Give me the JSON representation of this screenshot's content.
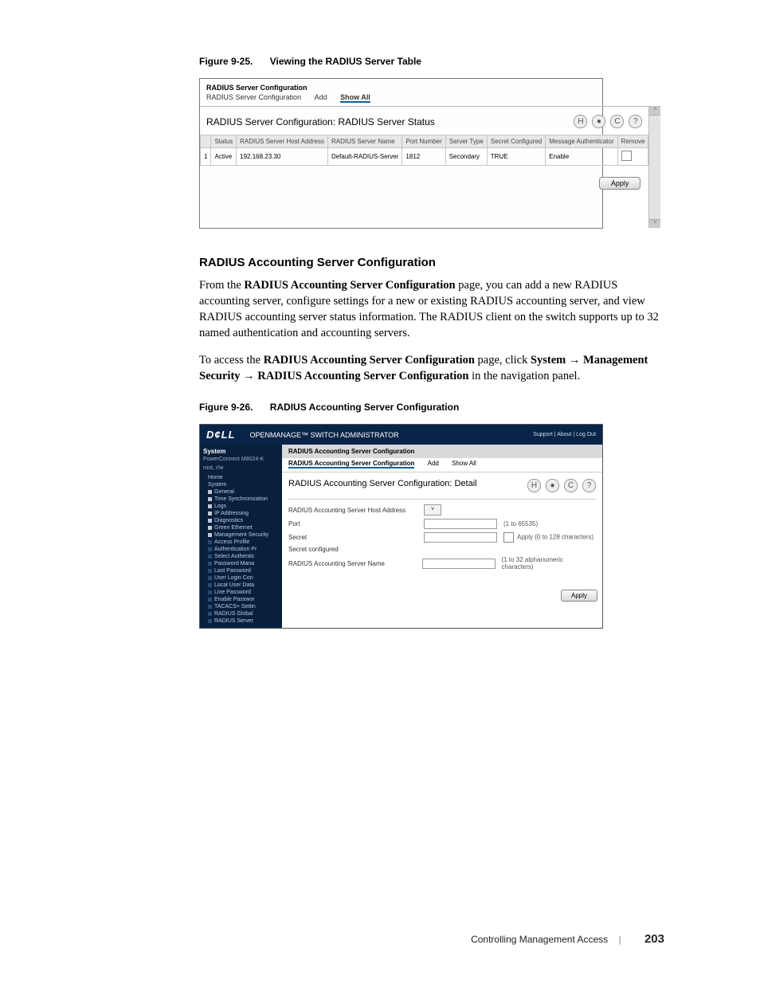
{
  "fig1": {
    "num": "Figure 9-25.",
    "title": "Viewing the RADIUS Server Table",
    "crumb": "RADIUS Server Configuration",
    "tabs": [
      "RADIUS Server Configuration",
      "Add",
      "Show All"
    ],
    "heading": "RADIUS Server Configuration: RADIUS Server Status",
    "cols": [
      "",
      "Status",
      "RADIUS Server Host Address",
      "RADIUS Server Name",
      "Port Number",
      "Server Type",
      "Secret Configured",
      "Message Authenticator",
      "Remove"
    ],
    "row": [
      "1",
      "Active",
      "192.168.23.30",
      "Default-RADIUS-Server",
      "1812",
      "Secondary",
      "TRUE",
      "Enable",
      ""
    ],
    "apply": "Apply"
  },
  "section": {
    "h": "RADIUS Accounting Server Configuration",
    "p1a": "From the ",
    "p1b": "RADIUS Accounting Server Configuration",
    "p1c": " page, you can add a new RADIUS accounting server, configure settings for a new or existing RADIUS accounting server, and view RADIUS accounting server status information. The RADIUS client on the switch supports up to 32 named authentication and accounting servers.",
    "p2a": "To access the ",
    "p2b": "RADIUS Accounting Server Configuration",
    "p2c": " page, click ",
    "p2d": "System",
    "arrow": " → ",
    "p2e": "Management Security",
    "p2f": "RADIUS Accounting Server Configuration",
    "p2g": " in the navigation panel."
  },
  "fig2": {
    "num": "Figure 9-26.",
    "title": "RADIUS Accounting Server Configuration",
    "brand_logo": "D¢LL",
    "brand": "OPENMANAGE™ SWITCH ADMINISTRATOR",
    "toplinks": "Support | About | Log Out",
    "nav_head": "System",
    "nav_sub": "PowerConnect M8024-K",
    "nav_user": "root, r/w",
    "nav_items": [
      "Home",
      "System",
      "General",
      "Time Synchronization",
      "Logs",
      "IP Addressing",
      "Diagnostics",
      "Green Ethernet",
      "Management Security",
      "Access Profile",
      "Authentication Pr",
      "Select Authentic",
      "Password Mana",
      "Last Password",
      "User Login Con",
      "Local User Data",
      "Line Password",
      "Enable Passwor",
      "TACACS+ Settin",
      "RADIUS Global",
      "RADIUS Server"
    ],
    "bar": "RADIUS Accounting Server Configuration",
    "tabs": [
      "RADIUS Accounting Server Configuration",
      "Add",
      "Show All"
    ],
    "heading": "RADIUS Accounting Server Configuration: Detail",
    "rows": [
      {
        "label": "RADIUS Accounting Server Host Address",
        "ctrl": "select",
        "hint": ""
      },
      {
        "label": "Port",
        "ctrl": "input",
        "hint": "(1 to 65535)"
      },
      {
        "label": "Secret",
        "ctrl": "input",
        "hint": "Apply  (0 to 128 characters)",
        "chk": true
      },
      {
        "label": "Secret configured",
        "ctrl": "none",
        "hint": ""
      },
      {
        "label": "RADIUS Accounting Server Name",
        "ctrl": "input",
        "hint": "(1 to 32 alphanumeric characters)"
      }
    ],
    "apply": "Apply"
  },
  "footer": {
    "chapter": "Controlling Management Access",
    "page": "203"
  }
}
